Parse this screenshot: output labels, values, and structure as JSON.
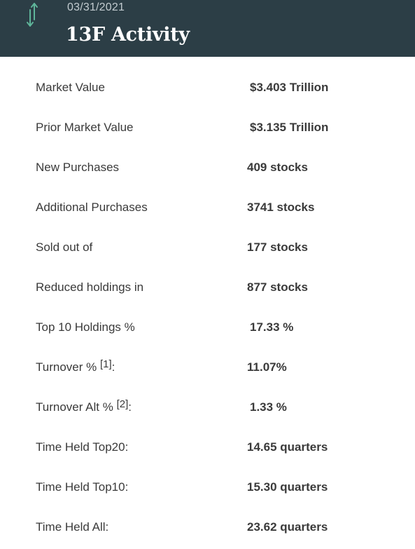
{
  "header": {
    "date": "03/31/2021",
    "title": "13F Activity",
    "icon": "up-down-arrows-icon",
    "icon_color": "#5fb59a",
    "background": "#2c3e46"
  },
  "rows": [
    {
      "label": "Market Value",
      "value": "$3.403 Trillion"
    },
    {
      "label": "Prior Market Value",
      "value": "$3.135 Trillion"
    },
    {
      "label": "New Purchases",
      "value": "409 stocks"
    },
    {
      "label": "Additional Purchases",
      "value": "3741 stocks"
    },
    {
      "label": "Sold out of",
      "value": "177 stocks"
    },
    {
      "label": "Reduced holdings in",
      "value": "877 stocks"
    },
    {
      "label": "Top 10 Holdings %",
      "value": "17.33 %"
    },
    {
      "label": "Turnover %",
      "note": "[1]",
      "suffix": ":",
      "value": "11.07%"
    },
    {
      "label": "Turnover Alt %",
      "note": "[2]",
      "suffix": ":",
      "value": "1.33 %"
    },
    {
      "label": "Time Held Top20:",
      "value": "14.65 quarters"
    },
    {
      "label": "Time Held Top10:",
      "value": "15.30 quarters"
    },
    {
      "label": "Time Held All:",
      "value": "23.62 quarters"
    }
  ]
}
